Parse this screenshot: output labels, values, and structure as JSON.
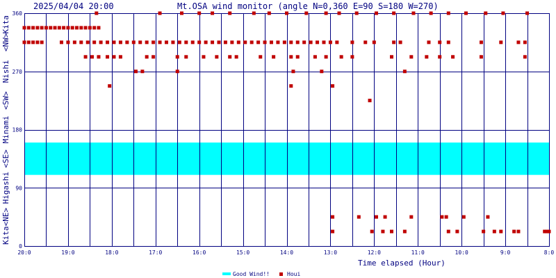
{
  "header": {
    "timestamp": "2025/04/04 20:00",
    "title": "Mt.OSA wind monitor (angle N=0,360 E=90 S=180 W=270)"
  },
  "colors": {
    "grid": "#000080",
    "good_band": "#00ffff",
    "houi": "#c00000",
    "text": "#000080"
  },
  "chart_data": {
    "type": "scatter",
    "title": "Mt.OSA wind monitor (angle N=0,360 E=90 S=180 W=270)",
    "xlabel": "Time elapsed (Hour)",
    "ylabel": "Kita <NE> Higashi <SE> Minami <SW> Nishi <NW> Kita",
    "x_axis_order": "descending (20:00 at left, 8:00 at right)",
    "xlim": [
      20,
      8
    ],
    "ylim": [
      0,
      360
    ],
    "x_tick_labels": [
      "20:0",
      "19:0",
      "18:0",
      "17:0",
      "16:0",
      "15:0",
      "14:0",
      "13:0",
      "12:0",
      "11:0",
      "10:0",
      "9:0",
      "8:0"
    ],
    "x_tick_values": [
      20,
      19,
      18,
      17,
      16,
      15,
      14,
      13,
      12,
      11,
      10,
      9,
      8
    ],
    "y_tick_labels": [
      "0",
      "90",
      "180",
      "270",
      "360"
    ],
    "y_tick_values": [
      0,
      90,
      180,
      270,
      360
    ],
    "y_side_labels": [
      "Kita",
      "<NE>",
      "Higashi",
      "<SE>",
      "Minami",
      "<SW>",
      "Nishi",
      "<NW>",
      "Kita"
    ],
    "grid": true,
    "legend": [
      {
        "label": "Good Wind!!",
        "kind": "band"
      },
      {
        "label": "Houi",
        "kind": "points"
      }
    ],
    "legend_position": "bottom-center",
    "bands": [
      {
        "name": "Good Wind!!",
        "y_from": 110,
        "y_to": 160
      }
    ],
    "series": [
      {
        "name": "Houi",
        "points": [
          {
            "x": 20.0,
            "y": 337.5
          },
          {
            "x": 19.9,
            "y": 337.5
          },
          {
            "x": 19.8,
            "y": 337.5
          },
          {
            "x": 19.7,
            "y": 337.5
          },
          {
            "x": 19.6,
            "y": 337.5
          },
          {
            "x": 19.5,
            "y": 337.5
          },
          {
            "x": 19.4,
            "y": 337.5
          },
          {
            "x": 19.3,
            "y": 337.5
          },
          {
            "x": 19.2,
            "y": 337.5
          },
          {
            "x": 19.1,
            "y": 337.5
          },
          {
            "x": 19.0,
            "y": 337.5
          },
          {
            "x": 18.9,
            "y": 337.5
          },
          {
            "x": 18.8,
            "y": 337.5
          },
          {
            "x": 18.7,
            "y": 337.5
          },
          {
            "x": 18.6,
            "y": 337.5
          },
          {
            "x": 18.5,
            "y": 337.5
          },
          {
            "x": 18.4,
            "y": 337.5
          },
          {
            "x": 18.3,
            "y": 337.5
          },
          {
            "x": 20.0,
            "y": 315
          },
          {
            "x": 19.9,
            "y": 315
          },
          {
            "x": 19.8,
            "y": 315
          },
          {
            "x": 19.7,
            "y": 315
          },
          {
            "x": 19.6,
            "y": 315
          },
          {
            "x": 19.15,
            "y": 315
          },
          {
            "x": 19.0,
            "y": 315
          },
          {
            "x": 18.85,
            "y": 315
          },
          {
            "x": 18.7,
            "y": 315
          },
          {
            "x": 18.55,
            "y": 315
          },
          {
            "x": 18.4,
            "y": 315
          },
          {
            "x": 18.25,
            "y": 315
          },
          {
            "x": 18.1,
            "y": 315
          },
          {
            "x": 17.95,
            "y": 315
          },
          {
            "x": 17.8,
            "y": 315
          },
          {
            "x": 17.65,
            "y": 315
          },
          {
            "x": 17.5,
            "y": 315
          },
          {
            "x": 17.35,
            "y": 315
          },
          {
            "x": 17.2,
            "y": 315
          },
          {
            "x": 17.05,
            "y": 315
          },
          {
            "x": 16.9,
            "y": 315
          },
          {
            "x": 16.75,
            "y": 315
          },
          {
            "x": 16.6,
            "y": 315
          },
          {
            "x": 16.45,
            "y": 315
          },
          {
            "x": 16.3,
            "y": 315
          },
          {
            "x": 16.15,
            "y": 315
          },
          {
            "x": 16.0,
            "y": 315
          },
          {
            "x": 15.85,
            "y": 315
          },
          {
            "x": 15.7,
            "y": 315
          },
          {
            "x": 15.55,
            "y": 315
          },
          {
            "x": 15.4,
            "y": 315
          },
          {
            "x": 15.25,
            "y": 315
          },
          {
            "x": 15.1,
            "y": 315
          },
          {
            "x": 14.95,
            "y": 315
          },
          {
            "x": 14.8,
            "y": 315
          },
          {
            "x": 14.65,
            "y": 315
          },
          {
            "x": 14.5,
            "y": 315
          },
          {
            "x": 14.35,
            "y": 315
          },
          {
            "x": 14.2,
            "y": 315
          },
          {
            "x": 14.05,
            "y": 315
          },
          {
            "x": 13.9,
            "y": 315
          },
          {
            "x": 13.75,
            "y": 315
          },
          {
            "x": 13.6,
            "y": 315
          },
          {
            "x": 13.45,
            "y": 315
          },
          {
            "x": 13.3,
            "y": 315
          },
          {
            "x": 13.15,
            "y": 315
          },
          {
            "x": 13.0,
            "y": 315
          },
          {
            "x": 12.85,
            "y": 315
          },
          {
            "x": 12.5,
            "y": 315
          },
          {
            "x": 12.2,
            "y": 315
          },
          {
            "x": 12.0,
            "y": 315
          },
          {
            "x": 11.55,
            "y": 315
          },
          {
            "x": 11.4,
            "y": 315
          },
          {
            "x": 10.75,
            "y": 315
          },
          {
            "x": 10.5,
            "y": 315
          },
          {
            "x": 10.3,
            "y": 315
          },
          {
            "x": 9.55,
            "y": 315
          },
          {
            "x": 9.1,
            "y": 315
          },
          {
            "x": 8.7,
            "y": 315
          },
          {
            "x": 8.55,
            "y": 315
          },
          {
            "x": 18.6,
            "y": 292.5
          },
          {
            "x": 18.45,
            "y": 292.5
          },
          {
            "x": 18.3,
            "y": 292.5
          },
          {
            "x": 18.1,
            "y": 292.5
          },
          {
            "x": 17.95,
            "y": 292.5
          },
          {
            "x": 17.8,
            "y": 292.5
          },
          {
            "x": 17.2,
            "y": 292.5
          },
          {
            "x": 17.05,
            "y": 292.5
          },
          {
            "x": 16.5,
            "y": 292.5
          },
          {
            "x": 16.3,
            "y": 292.5
          },
          {
            "x": 15.9,
            "y": 292.5
          },
          {
            "x": 15.6,
            "y": 292.5
          },
          {
            "x": 15.3,
            "y": 292.5
          },
          {
            "x": 15.15,
            "y": 292.5
          },
          {
            "x": 14.6,
            "y": 292.5
          },
          {
            "x": 14.3,
            "y": 292.5
          },
          {
            "x": 13.9,
            "y": 292.5
          },
          {
            "x": 13.75,
            "y": 292.5
          },
          {
            "x": 13.35,
            "y": 292.5
          },
          {
            "x": 13.1,
            "y": 292.5
          },
          {
            "x": 12.75,
            "y": 292.5
          },
          {
            "x": 12.5,
            "y": 292.5
          },
          {
            "x": 11.6,
            "y": 292.5
          },
          {
            "x": 11.15,
            "y": 292.5
          },
          {
            "x": 10.8,
            "y": 292.5
          },
          {
            "x": 10.5,
            "y": 292.5
          },
          {
            "x": 10.2,
            "y": 292.5
          },
          {
            "x": 9.55,
            "y": 292.5
          },
          {
            "x": 8.55,
            "y": 292.5
          },
          {
            "x": 17.45,
            "y": 270
          },
          {
            "x": 17.3,
            "y": 270
          },
          {
            "x": 16.5,
            "y": 270
          },
          {
            "x": 13.85,
            "y": 270
          },
          {
            "x": 13.2,
            "y": 270
          },
          {
            "x": 11.3,
            "y": 270
          },
          {
            "x": 18.05,
            "y": 247.5
          },
          {
            "x": 13.9,
            "y": 247.5
          },
          {
            "x": 12.95,
            "y": 247.5
          },
          {
            "x": 12.1,
            "y": 225
          },
          {
            "x": 18.35,
            "y": 360
          },
          {
            "x": 16.9,
            "y": 360
          },
          {
            "x": 16.4,
            "y": 360
          },
          {
            "x": 16.0,
            "y": 360
          },
          {
            "x": 15.7,
            "y": 360
          },
          {
            "x": 15.3,
            "y": 360
          },
          {
            "x": 14.75,
            "y": 360
          },
          {
            "x": 14.4,
            "y": 360
          },
          {
            "x": 14.0,
            "y": 360
          },
          {
            "x": 13.55,
            "y": 360
          },
          {
            "x": 13.1,
            "y": 360
          },
          {
            "x": 12.8,
            "y": 360
          },
          {
            "x": 12.4,
            "y": 360
          },
          {
            "x": 11.95,
            "y": 360
          },
          {
            "x": 11.55,
            "y": 360
          },
          {
            "x": 11.1,
            "y": 360
          },
          {
            "x": 10.7,
            "y": 360
          },
          {
            "x": 10.3,
            "y": 360
          },
          {
            "x": 9.9,
            "y": 360
          },
          {
            "x": 9.45,
            "y": 360
          },
          {
            "x": 9.05,
            "y": 360
          },
          {
            "x": 8.5,
            "y": 360
          },
          {
            "x": 12.95,
            "y": 45
          },
          {
            "x": 12.35,
            "y": 45
          },
          {
            "x": 11.95,
            "y": 45
          },
          {
            "x": 11.75,
            "y": 45
          },
          {
            "x": 11.15,
            "y": 45
          },
          {
            "x": 10.45,
            "y": 45
          },
          {
            "x": 10.35,
            "y": 45
          },
          {
            "x": 9.95,
            "y": 45
          },
          {
            "x": 9.4,
            "y": 45
          },
          {
            "x": 12.95,
            "y": 22.5
          },
          {
            "x": 12.05,
            "y": 22.5
          },
          {
            "x": 11.8,
            "y": 22.5
          },
          {
            "x": 11.6,
            "y": 22.5
          },
          {
            "x": 11.3,
            "y": 22.5
          },
          {
            "x": 10.3,
            "y": 22.5
          },
          {
            "x": 10.1,
            "y": 22.5
          },
          {
            "x": 9.5,
            "y": 22.5
          },
          {
            "x": 9.25,
            "y": 22.5
          },
          {
            "x": 9.1,
            "y": 22.5
          },
          {
            "x": 8.8,
            "y": 22.5
          },
          {
            "x": 8.7,
            "y": 22.5
          },
          {
            "x": 8.1,
            "y": 22.5
          },
          {
            "x": 8.05,
            "y": 22.5
          },
          {
            "x": 8.0,
            "y": 22.5
          }
        ]
      }
    ]
  }
}
